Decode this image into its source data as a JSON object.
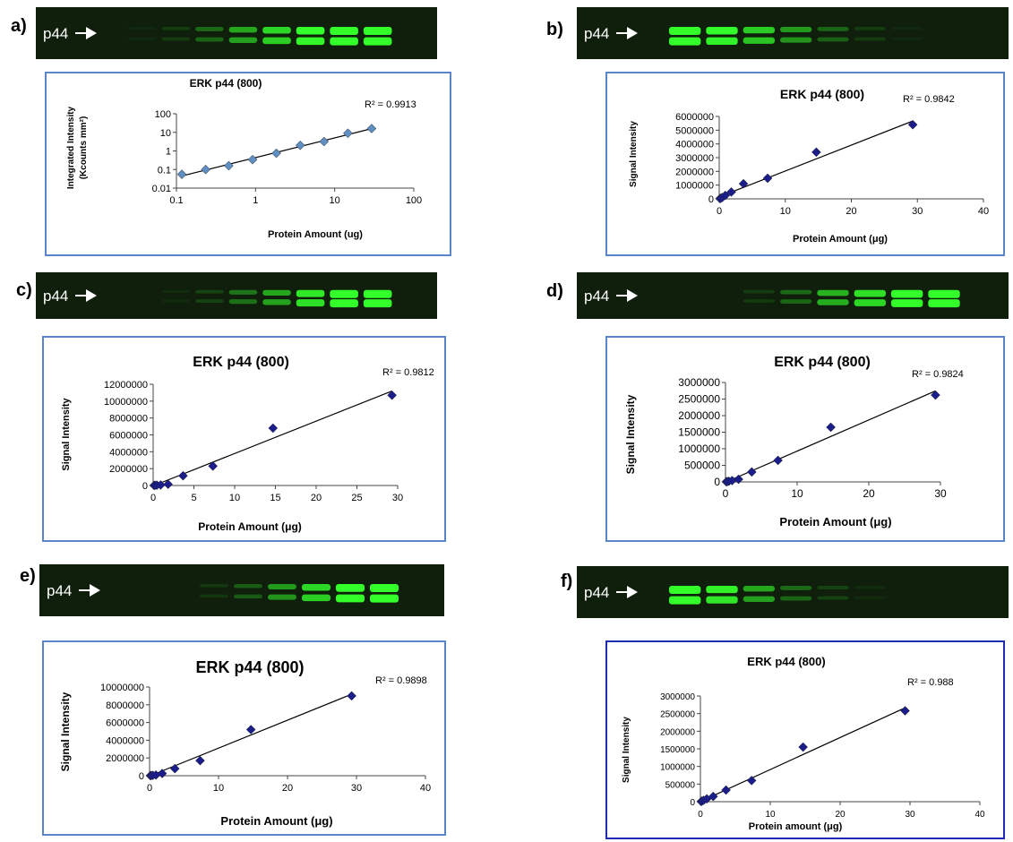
{
  "colors": {
    "blot_bg": "#0f1f0c",
    "band": "#33ff2a",
    "frame": "#5b85c9",
    "frame_f": "#1f2bb0",
    "marker_light": "#5e8ec2",
    "marker_dark": "#1b1d8a"
  },
  "blot_label": "p44",
  "arrow_icon": "right-arrow-icon",
  "blots": [
    {
      "intensities": [
        0.04,
        0.12,
        0.3,
        0.55,
        0.75,
        0.92,
        1.0,
        1.0,
        0.0
      ]
    },
    {
      "intensities": [
        1.0,
        0.9,
        0.7,
        0.5,
        0.28,
        0.12,
        0.04,
        0.0,
        0.0
      ]
    },
    {
      "intensities": [
        0.0,
        0.05,
        0.15,
        0.35,
        0.55,
        0.82,
        1.0,
        1.0,
        0.0
      ]
    },
    {
      "intensities": [
        0.0,
        0.0,
        0.12,
        0.3,
        0.6,
        0.78,
        0.95,
        1.0,
        0.0
      ]
    },
    {
      "intensities": [
        0.0,
        0.0,
        0.1,
        0.25,
        0.5,
        0.75,
        0.95,
        1.0,
        0.0
      ]
    },
    {
      "intensities": [
        1.0,
        0.85,
        0.55,
        0.3,
        0.15,
        0.05,
        0.0,
        0.0,
        0.0
      ]
    }
  ],
  "chart_data": [
    {
      "panel": "a)",
      "type": "scatter",
      "title": "ERK p44 (800)",
      "xlabel": "Protein Amount (ug)",
      "ylabel": [
        "Integrated Intensity",
        "(Kcounts mm²)"
      ],
      "x_scale": "log",
      "y_scale": "log",
      "xlim": [
        0.1,
        100
      ],
      "ylim": [
        0.01,
        100
      ],
      "x_ticks": [
        "0.1",
        "1",
        "10",
        "100"
      ],
      "y_ticks": [
        "0.01",
        "0.1",
        "1",
        "10",
        "100"
      ],
      "r2": "R² = 0.9913",
      "x": [
        0.117,
        0.234,
        0.458,
        0.917,
        1.83,
        3.67,
        7.33,
        14.7,
        29.3
      ],
      "y": [
        0.055,
        0.1,
        0.16,
        0.34,
        0.75,
        2.0,
        3.2,
        9.0,
        16.0
      ],
      "marker_color": "light"
    },
    {
      "panel": "b)",
      "type": "scatter",
      "title": "ERK p44 (800)",
      "xlabel": "Protein Amount (μg)",
      "ylabel": "Signal Intensity",
      "xlim": [
        0,
        40
      ],
      "ylim": [
        0,
        6000000
      ],
      "x_ticks": [
        "0",
        "10",
        "20",
        "30",
        "40"
      ],
      "y_ticks": [
        "0",
        "1000000",
        "2000000",
        "3000000",
        "4000000",
        "5000000",
        "6000000"
      ],
      "r2": "R² = 0.9842",
      "x": [
        0.117,
        0.234,
        0.458,
        0.917,
        1.83,
        3.67,
        7.33,
        14.7,
        29.3
      ],
      "y": [
        20000,
        50000,
        100000,
        250000,
        500000,
        1100000,
        1500000,
        3400000,
        5400000
      ],
      "marker_color": "dark"
    },
    {
      "panel": "c)",
      "type": "scatter",
      "title": "ERK p44 (800)",
      "xlabel": "Protein Amount (μg)",
      "ylabel": "Signal Intensity",
      "xlim": [
        0,
        30
      ],
      "ylim": [
        0,
        12000000
      ],
      "x_ticks": [
        "0",
        "5",
        "10",
        "15",
        "20",
        "25",
        "30"
      ],
      "y_ticks": [
        "0",
        "2000000",
        "4000000",
        "6000000",
        "8000000",
        "10000000",
        "12000000"
      ],
      "r2": "R² = 0.9812",
      "x": [
        0.117,
        0.234,
        0.458,
        0.917,
        1.83,
        3.67,
        7.33,
        14.7,
        29.3
      ],
      "y": [
        10000,
        20000,
        40000,
        60000,
        150000,
        1150000,
        2300000,
        6800000,
        10700000
      ],
      "marker_color": "dark"
    },
    {
      "panel": "d)",
      "type": "scatter",
      "title": "ERK p44 (800)",
      "xlabel": "Protein Amount (μg)",
      "ylabel": "Signal Intensity",
      "xlim": [
        0,
        30
      ],
      "ylim": [
        0,
        3000000
      ],
      "x_ticks": [
        "0",
        "10",
        "20",
        "30"
      ],
      "y_ticks": [
        "0",
        "500000",
        "1000000",
        "1500000",
        "2000000",
        "2500000",
        "3000000"
      ],
      "r2": "R² = 0.9824",
      "x": [
        0.117,
        0.234,
        0.458,
        0.917,
        1.83,
        3.67,
        7.33,
        14.7,
        29.3
      ],
      "y": [
        5000,
        10000,
        20000,
        40000,
        80000,
        300000,
        650000,
        1650000,
        2620000
      ],
      "marker_color": "dark"
    },
    {
      "panel": "e)",
      "type": "scatter",
      "title": "ERK p44 (800)",
      "xlabel": "Protein Amount (μg)",
      "ylabel": "Signal Intensity",
      "xlim": [
        0,
        40
      ],
      "ylim": [
        0,
        10000000
      ],
      "x_ticks": [
        "0",
        "10",
        "20",
        "30",
        "40"
      ],
      "y_ticks": [
        "0",
        "2000000",
        "4000000",
        "6000000",
        "8000000",
        "10000000"
      ],
      "r2": "R² = 0.9898",
      "x": [
        0.117,
        0.234,
        0.458,
        0.917,
        1.83,
        3.67,
        7.33,
        14.7,
        29.3
      ],
      "y": [
        10000,
        20000,
        40000,
        80000,
        250000,
        800000,
        1700000,
        5200000,
        9000000
      ],
      "marker_color": "dark"
    },
    {
      "panel": "f)",
      "type": "scatter",
      "title": "ERK p44 (800)",
      "xlabel": "Protein amount (μg)",
      "ylabel": "Signal Intensity",
      "xlim": [
        0,
        40
      ],
      "ylim": [
        0,
        3000000
      ],
      "x_ticks": [
        "0",
        "10",
        "20",
        "30",
        "40"
      ],
      "y_ticks": [
        "0",
        "500000",
        "1000000",
        "1500000",
        "2000000",
        "2500000",
        "3000000"
      ],
      "r2": "R² = 0.988",
      "x": [
        0.117,
        0.234,
        0.458,
        0.917,
        1.83,
        3.67,
        7.33,
        14.7,
        29.3
      ],
      "y": [
        5000,
        20000,
        40000,
        80000,
        150000,
        330000,
        600000,
        1550000,
        2580000
      ],
      "marker_color": "dark"
    }
  ]
}
